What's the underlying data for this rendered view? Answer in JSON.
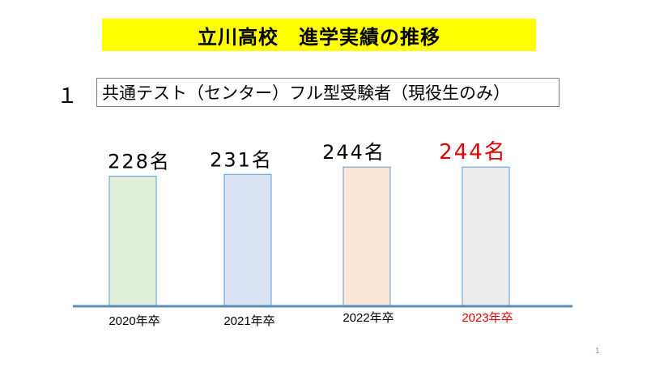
{
  "title": "立川高校　進学実績の推移",
  "section_number": "１",
  "subtitle": "共通テスト（センター）フル型受験者（現役生のみ）",
  "page_number": "1",
  "chart_data": {
    "type": "bar",
    "categories": [
      "2020年卒",
      "2021年卒",
      "2022年卒",
      "2023年卒"
    ],
    "values": [
      228,
      231,
      244,
      244
    ],
    "value_labels": [
      "228名",
      "231名",
      "244名",
      "244名"
    ],
    "bar_colors": [
      "#e2efda",
      "#dae3f3",
      "#fbe5d6",
      "#ededed"
    ],
    "bar_edge_color": "#5b9bd5",
    "label_colors": [
      "#000000",
      "#000000",
      "#000000",
      "#e00000"
    ],
    "highlight_color": "#e00000",
    "baseline_color": "#5b8fb9",
    "grid": false,
    "legend": "none"
  }
}
